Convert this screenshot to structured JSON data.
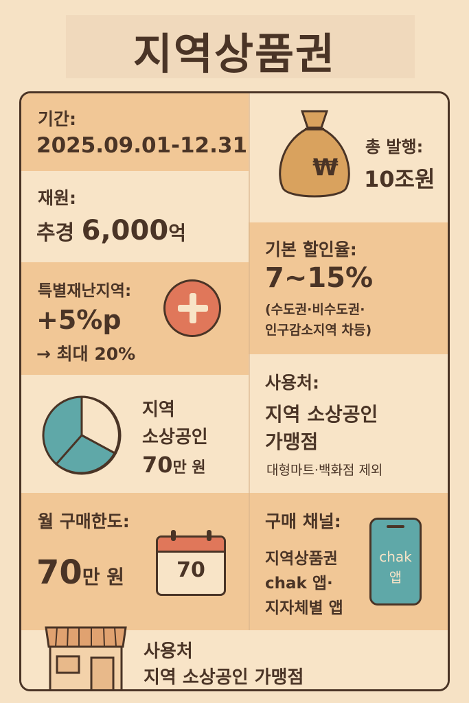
{
  "title": "지역상품권",
  "period": {
    "label": "기간:",
    "value": "2025.09.01-12.31"
  },
  "total": {
    "label": "총 발행:",
    "value": "10조원",
    "icon": "money-bag-icon",
    "symbol": "₩"
  },
  "funding": {
    "label": "재원:",
    "prefix": "추경",
    "amount": "6,000",
    "unit": "억"
  },
  "discount": {
    "label": "기본 할인율:",
    "value": "7~15%",
    "note1": "(수도권·비수도권·",
    "note2": "인구감소지역 차등)"
  },
  "special": {
    "label": "특별재난지역:",
    "value": "+5%p",
    "max": "→ 최대 20%",
    "icon": "plus-icon"
  },
  "usage": {
    "label": "사용처:",
    "line1": "지역 소상공인",
    "line2": "가맹점",
    "exclude": "대형마트·백화점 제외"
  },
  "pie": {
    "line1": "지역",
    "line2": "소상공인",
    "amount": "70",
    "unit": "만 원",
    "icon": "pie-chart-icon"
  },
  "limit": {
    "label": "월 구매한도:",
    "amount": "70",
    "unit": "만 원",
    "calendar": "70",
    "icon": "calendar-icon"
  },
  "channel": {
    "label": "구매 채널:",
    "line1": "지역상품권",
    "line2": "chak 앱·",
    "line3": "지자체별 앱",
    "phone1": "chak",
    "phone2": "앱",
    "icon": "phone-icon"
  },
  "footer": {
    "line1": "사용처",
    "line2": "지역 소상공인 가맹점",
    "icon": "store-icon"
  },
  "colors": {
    "ink": "#4a3426",
    "accent": "#e0775a",
    "teal": "#5fa8a8",
    "gold": "#d9a25e"
  }
}
